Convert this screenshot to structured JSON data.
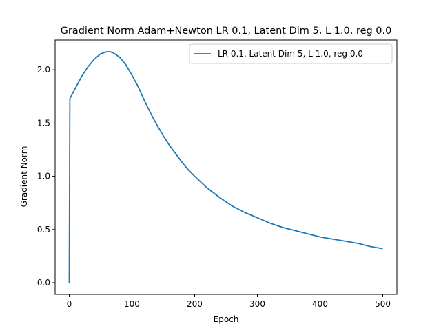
{
  "chart_data": {
    "type": "line",
    "title": "Gradient Norm Adam+Newton LR 0.1, Latent Dim 5, L 1.0, reg 0.0",
    "xlabel": "Epoch",
    "ylabel": "Gradient Norm",
    "xlim": [
      -22.5,
      522.5
    ],
    "ylim": [
      -0.11,
      2.28
    ],
    "xticks": [
      0,
      100,
      200,
      300,
      400,
      500
    ],
    "yticks": [
      0.0,
      0.5,
      1.0,
      1.5,
      2.0
    ],
    "xtick_labels": [
      "0",
      "100",
      "200",
      "300",
      "400",
      "500"
    ],
    "ytick_labels": [
      "0.0",
      "0.5",
      "1.0",
      "1.5",
      "2.0"
    ],
    "grid": false,
    "legend_position": "top-right",
    "series": [
      {
        "name": "LR 0.1, Latent Dim 5, L 1.0, reg 0.0",
        "color": "#1f77b4",
        "x": [
          0,
          1,
          10,
          20,
          30,
          40,
          50,
          60,
          65,
          70,
          80,
          90,
          100,
          110,
          120,
          130,
          140,
          150,
          160,
          170,
          180,
          190,
          200,
          220,
          240,
          260,
          280,
          300,
          320,
          340,
          360,
          380,
          400,
          420,
          440,
          460,
          480,
          500
        ],
        "y": [
          0.0,
          1.73,
          1.83,
          1.94,
          2.03,
          2.1,
          2.15,
          2.17,
          2.17,
          2.16,
          2.12,
          2.05,
          1.95,
          1.84,
          1.71,
          1.59,
          1.48,
          1.38,
          1.29,
          1.21,
          1.13,
          1.06,
          1.0,
          0.89,
          0.8,
          0.72,
          0.66,
          0.61,
          0.56,
          0.52,
          0.49,
          0.46,
          0.43,
          0.41,
          0.39,
          0.37,
          0.34,
          0.32
        ]
      }
    ]
  }
}
